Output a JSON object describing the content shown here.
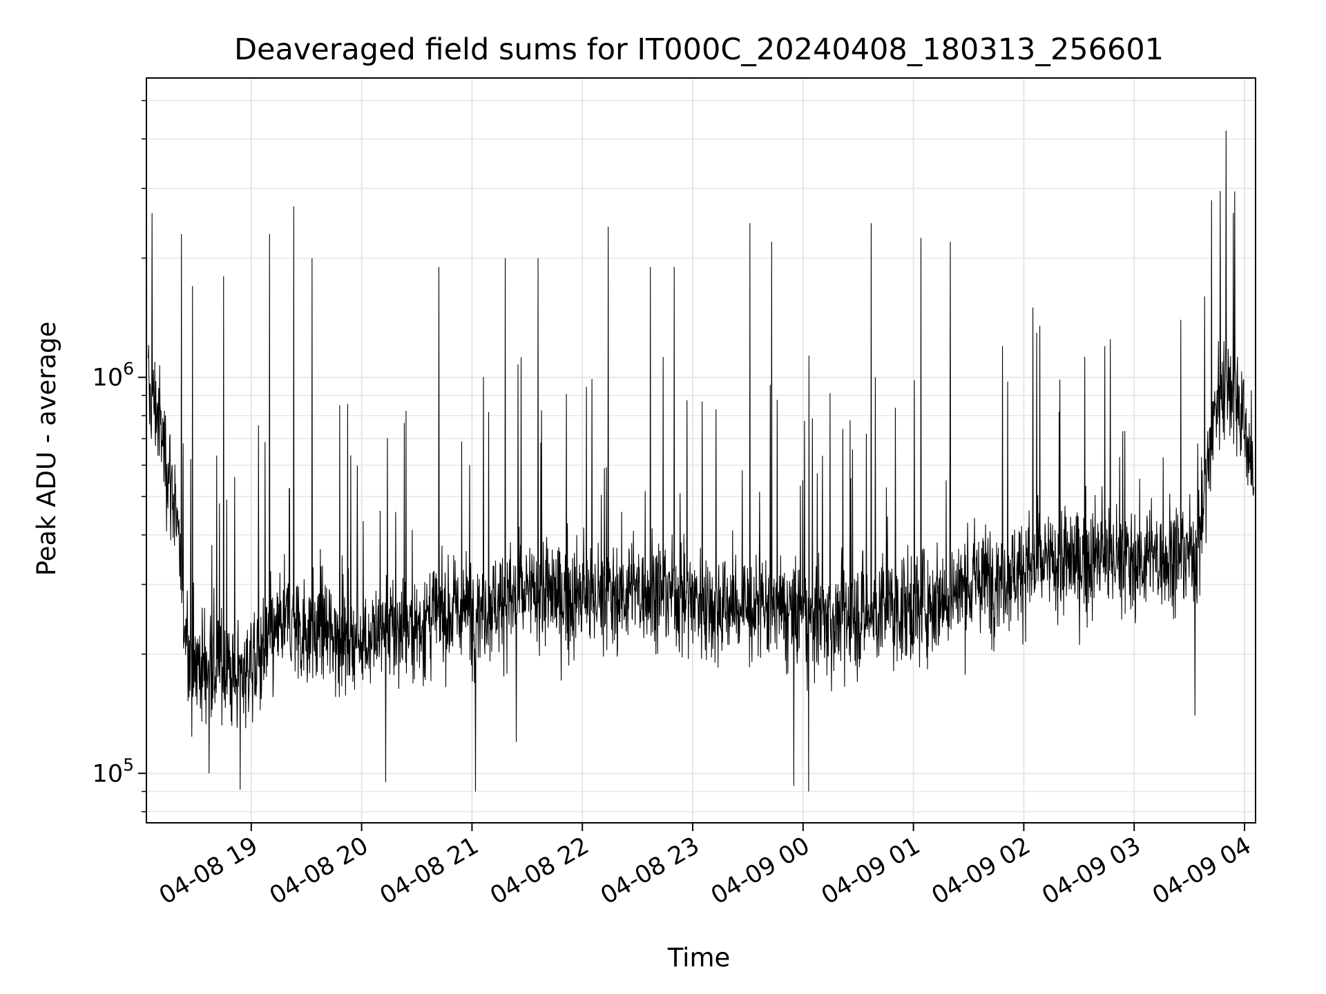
{
  "chart_data": {
    "type": "line",
    "title": "Deaveraged field sums for IT000C_20240408_180313_256601",
    "xlabel": "Time",
    "ylabel": "Peak ADU - average",
    "xscale": "time",
    "yscale": "log",
    "grid": true,
    "line_color": "#000000",
    "grid_color": "#e6e6e6",
    "xlim": [
      "2024-04-08 18:03",
      "2024-04-09 04:06"
    ],
    "ylim": [
      75000,
      5700000
    ],
    "x_ticks": [
      {
        "value": "2024-04-08 19:00",
        "label": "04-08 19"
      },
      {
        "value": "2024-04-08 20:00",
        "label": "04-08 20"
      },
      {
        "value": "2024-04-08 21:00",
        "label": "04-08 21"
      },
      {
        "value": "2024-04-08 22:00",
        "label": "04-08 22"
      },
      {
        "value": "2024-04-08 23:00",
        "label": "04-08 23"
      },
      {
        "value": "2024-04-09 00:00",
        "label": "04-09 00"
      },
      {
        "value": "2024-04-09 01:00",
        "label": "04-09 01"
      },
      {
        "value": "2024-04-09 02:00",
        "label": "04-09 02"
      },
      {
        "value": "2024-04-09 03:00",
        "label": "04-09 03"
      },
      {
        "value": "2024-04-09 04:00",
        "label": "04-09 04"
      }
    ],
    "y_ticks": [
      {
        "value": 100000,
        "base": "10",
        "exp": "5"
      },
      {
        "value": 1000000,
        "base": "10",
        "exp": "6"
      }
    ],
    "series": [
      {
        "x": [
          "2024-04-08 18:04",
          "2024-04-08 18:08",
          "2024-04-08 18:13",
          "2024-04-08 18:18",
          "2024-04-08 18:22",
          "2024-04-08 18:26",
          "2024-04-08 18:30",
          "2024-04-08 18:35",
          "2024-04-08 18:40",
          "2024-04-08 18:45",
          "2024-04-08 18:50",
          "2024-04-08 18:55",
          "2024-04-08 19:00",
          "2024-04-08 19:05",
          "2024-04-08 19:10",
          "2024-04-08 19:15",
          "2024-04-08 19:20",
          "2024-04-08 19:25",
          "2024-04-08 19:30",
          "2024-04-08 19:40",
          "2024-04-08 19:50",
          "2024-04-08 20:00",
          "2024-04-08 20:10",
          "2024-04-08 20:20",
          "2024-04-08 20:30",
          "2024-04-08 20:40",
          "2024-04-08 20:50",
          "2024-04-08 21:00",
          "2024-04-08 21:10",
          "2024-04-08 21:20",
          "2024-04-08 21:30",
          "2024-04-08 21:40",
          "2024-04-08 21:50",
          "2024-04-08 22:00",
          "2024-04-08 22:10",
          "2024-04-08 22:20",
          "2024-04-08 22:30",
          "2024-04-08 22:40",
          "2024-04-08 22:50",
          "2024-04-08 23:00",
          "2024-04-08 23:10",
          "2024-04-08 23:20",
          "2024-04-08 23:30",
          "2024-04-08 23:40",
          "2024-04-08 23:50",
          "2024-04-09 00:00",
          "2024-04-09 00:10",
          "2024-04-09 00:20",
          "2024-04-09 00:30",
          "2024-04-09 00:40",
          "2024-04-09 00:50",
          "2024-04-09 01:00",
          "2024-04-09 01:10",
          "2024-04-09 01:20",
          "2024-04-09 01:30",
          "2024-04-09 01:40",
          "2024-04-09 01:50",
          "2024-04-09 02:00",
          "2024-04-09 02:10",
          "2024-04-09 02:20",
          "2024-04-09 02:30",
          "2024-04-09 02:40",
          "2024-04-09 02:50",
          "2024-04-09 03:00",
          "2024-04-09 03:10",
          "2024-04-09 03:20",
          "2024-04-09 03:30",
          "2024-04-09 03:35",
          "2024-04-09 03:40",
          "2024-04-09 03:45",
          "2024-04-09 03:50",
          "2024-04-09 03:55",
          "2024-04-09 04:00",
          "2024-04-09 04:05"
        ],
        "y": [
          900000,
          850000,
          650000,
          500000,
          300000,
          200000,
          190000,
          185000,
          180000,
          190000,
          175000,
          180000,
          190000,
          200000,
          210000,
          230000,
          240000,
          235000,
          230000,
          225000,
          220000,
          220000,
          225000,
          230000,
          235000,
          250000,
          255000,
          260000,
          270000,
          275000,
          280000,
          285000,
          280000,
          275000,
          280000,
          285000,
          290000,
          290000,
          285000,
          280000,
          270000,
          265000,
          260000,
          260000,
          255000,
          250000,
          245000,
          245000,
          250000,
          255000,
          260000,
          265000,
          275000,
          285000,
          300000,
          310000,
          320000,
          330000,
          335000,
          340000,
          345000,
          350000,
          350000,
          345000,
          350000,
          355000,
          360000,
          380000,
          600000,
          900000,
          1000000,
          950000,
          750000,
          550000
        ],
        "spikes": [
          {
            "x": "2024-04-08 18:06",
            "y": 2600000
          },
          {
            "x": "2024-04-08 18:22",
            "y": 2300000
          },
          {
            "x": "2024-04-08 18:28",
            "y": 1700000
          },
          {
            "x": "2024-04-08 18:45",
            "y": 1800000
          },
          {
            "x": "2024-04-08 19:10",
            "y": 2300000
          },
          {
            "x": "2024-04-08 19:23",
            "y": 2700000
          },
          {
            "x": "2024-04-08 19:33",
            "y": 2000000
          },
          {
            "x": "2024-04-08 19:48",
            "y": 850000
          },
          {
            "x": "2024-04-08 20:42",
            "y": 1900000
          },
          {
            "x": "2024-04-08 21:18",
            "y": 2000000
          },
          {
            "x": "2024-04-08 21:36",
            "y": 2000000
          },
          {
            "x": "2024-04-08 22:14",
            "y": 2400000
          },
          {
            "x": "2024-04-08 22:37",
            "y": 1900000
          },
          {
            "x": "2024-04-08 22:50",
            "y": 1900000
          },
          {
            "x": "2024-04-08 23:31",
            "y": 2450000
          },
          {
            "x": "2024-04-08 23:43",
            "y": 2200000
          },
          {
            "x": "2024-04-09 00:37",
            "y": 2450000
          },
          {
            "x": "2024-04-09 01:04",
            "y": 2250000
          },
          {
            "x": "2024-04-09 01:20",
            "y": 2200000
          },
          {
            "x": "2024-04-09 02:05",
            "y": 1500000
          },
          {
            "x": "2024-04-09 03:42",
            "y": 2800000
          },
          {
            "x": "2024-04-09 03:50",
            "y": 4200000
          },
          {
            "x": "2024-04-09 03:54",
            "y": 2600000
          }
        ],
        "dips": [
          {
            "x": "2024-04-08 18:37",
            "y": 100000
          },
          {
            "x": "2024-04-08 18:54",
            "y": 91000
          },
          {
            "x": "2024-04-08 20:13",
            "y": 95000
          },
          {
            "x": "2024-04-08 21:02",
            "y": 90000
          },
          {
            "x": "2024-04-08 21:24",
            "y": 120000
          },
          {
            "x": "2024-04-08 23:55",
            "y": 93000
          },
          {
            "x": "2024-04-09 00:03",
            "y": 90000
          },
          {
            "x": "2024-04-09 03:33",
            "y": 140000
          }
        ]
      }
    ]
  }
}
